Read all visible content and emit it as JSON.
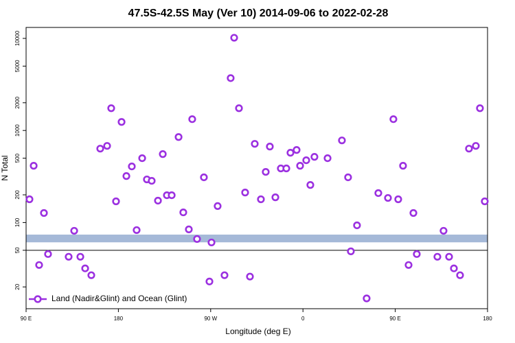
{
  "chart_data": {
    "type": "scatter",
    "title": "47.5S-42.5S May (Ver 10)   2014-09-06 to 2022-02-28",
    "xlabel": "Longitude (deg E)",
    "ylabel": "N Total",
    "log_y": true,
    "legend": "bottom-left",
    "xlim": [
      90,
      540
    ],
    "ylim": [
      11.6,
      13150
    ],
    "xticks": [
      {
        "value": 90,
        "label": "90 E"
      },
      180,
      {
        "value": 270,
        "label": "90 W"
      },
      {
        "value": 360,
        "label": "0"
      },
      {
        "value": 450,
        "label": "90 E"
      },
      {
        "value": 540,
        "label": "180"
      }
    ],
    "yticks": [
      20,
      50,
      100,
      200,
      500,
      1000,
      2000,
      5000,
      10000
    ],
    "band": [
      61,
      74
    ],
    "band_color": "#a5b9d8",
    "hline": 50,
    "series": [
      {
        "name": "Land (Nadir&Glint) and Ocean (Glint)",
        "color": "#9b30e0",
        "x": [
          93.3,
          97.4,
          102.7,
          107.4,
          111.4,
          131.5,
          136.9,
          142.9,
          147.6,
          153.6,
          162.3,
          169,
          173,
          177.7,
          183.1,
          187.8,
          193.1,
          197.8,
          203.2,
          207.8,
          212.5,
          218.6,
          223.3,
          227.3,
          232,
          238.7,
          243.3,
          248.7,
          252,
          256.7,
          263.4,
          270.8,
          268.8,
          276.8,
          283.5,
          289.5,
          292.9,
          297.6,
          303.6,
          308.3,
          313,
          319,
          323.7,
          327.7,
          333.1,
          338.4,
          343.8,
          347.8,
          353.8,
          357.2,
          363.2,
          367.2,
          371.2,
          384,
          398,
          404,
          406.7,
          412.7,
          422.1,
          433.5,
          442.9,
          448.2,
          452.9,
          457.6,
          463,
          467.7,
          471,
          491.1,
          497.1,
          502.5,
          507.2,
          513.2,
          521.9,
          528.6,
          532.6,
          537.3
        ],
        "values": [
          179,
          414,
          34.6,
          127,
          45.5,
          42.5,
          81.4,
          42.5,
          31.8,
          26.8,
          635,
          680,
          1745,
          170,
          1238,
          320,
          407,
          82.8,
          500,
          294,
          284,
          173,
          554,
          198,
          198,
          849,
          129,
          84.3,
          1327,
          66.3,
          310,
          60.8,
          22.9,
          151,
          26.8,
          3705,
          10160,
          1745,
          212,
          25.9,
          716,
          179,
          355,
          669,
          188,
          387,
          387,
          573,
          614,
          414,
          475,
          256,
          517,
          500,
          780,
          310,
          48.7,
          93.3,
          15.0,
          209,
          185,
          1327,
          179,
          414,
          34.6,
          127,
          45.5,
          42.5,
          81.4,
          42.5,
          31.8,
          26.8,
          635,
          680,
          1745,
          170
        ]
      }
    ]
  }
}
